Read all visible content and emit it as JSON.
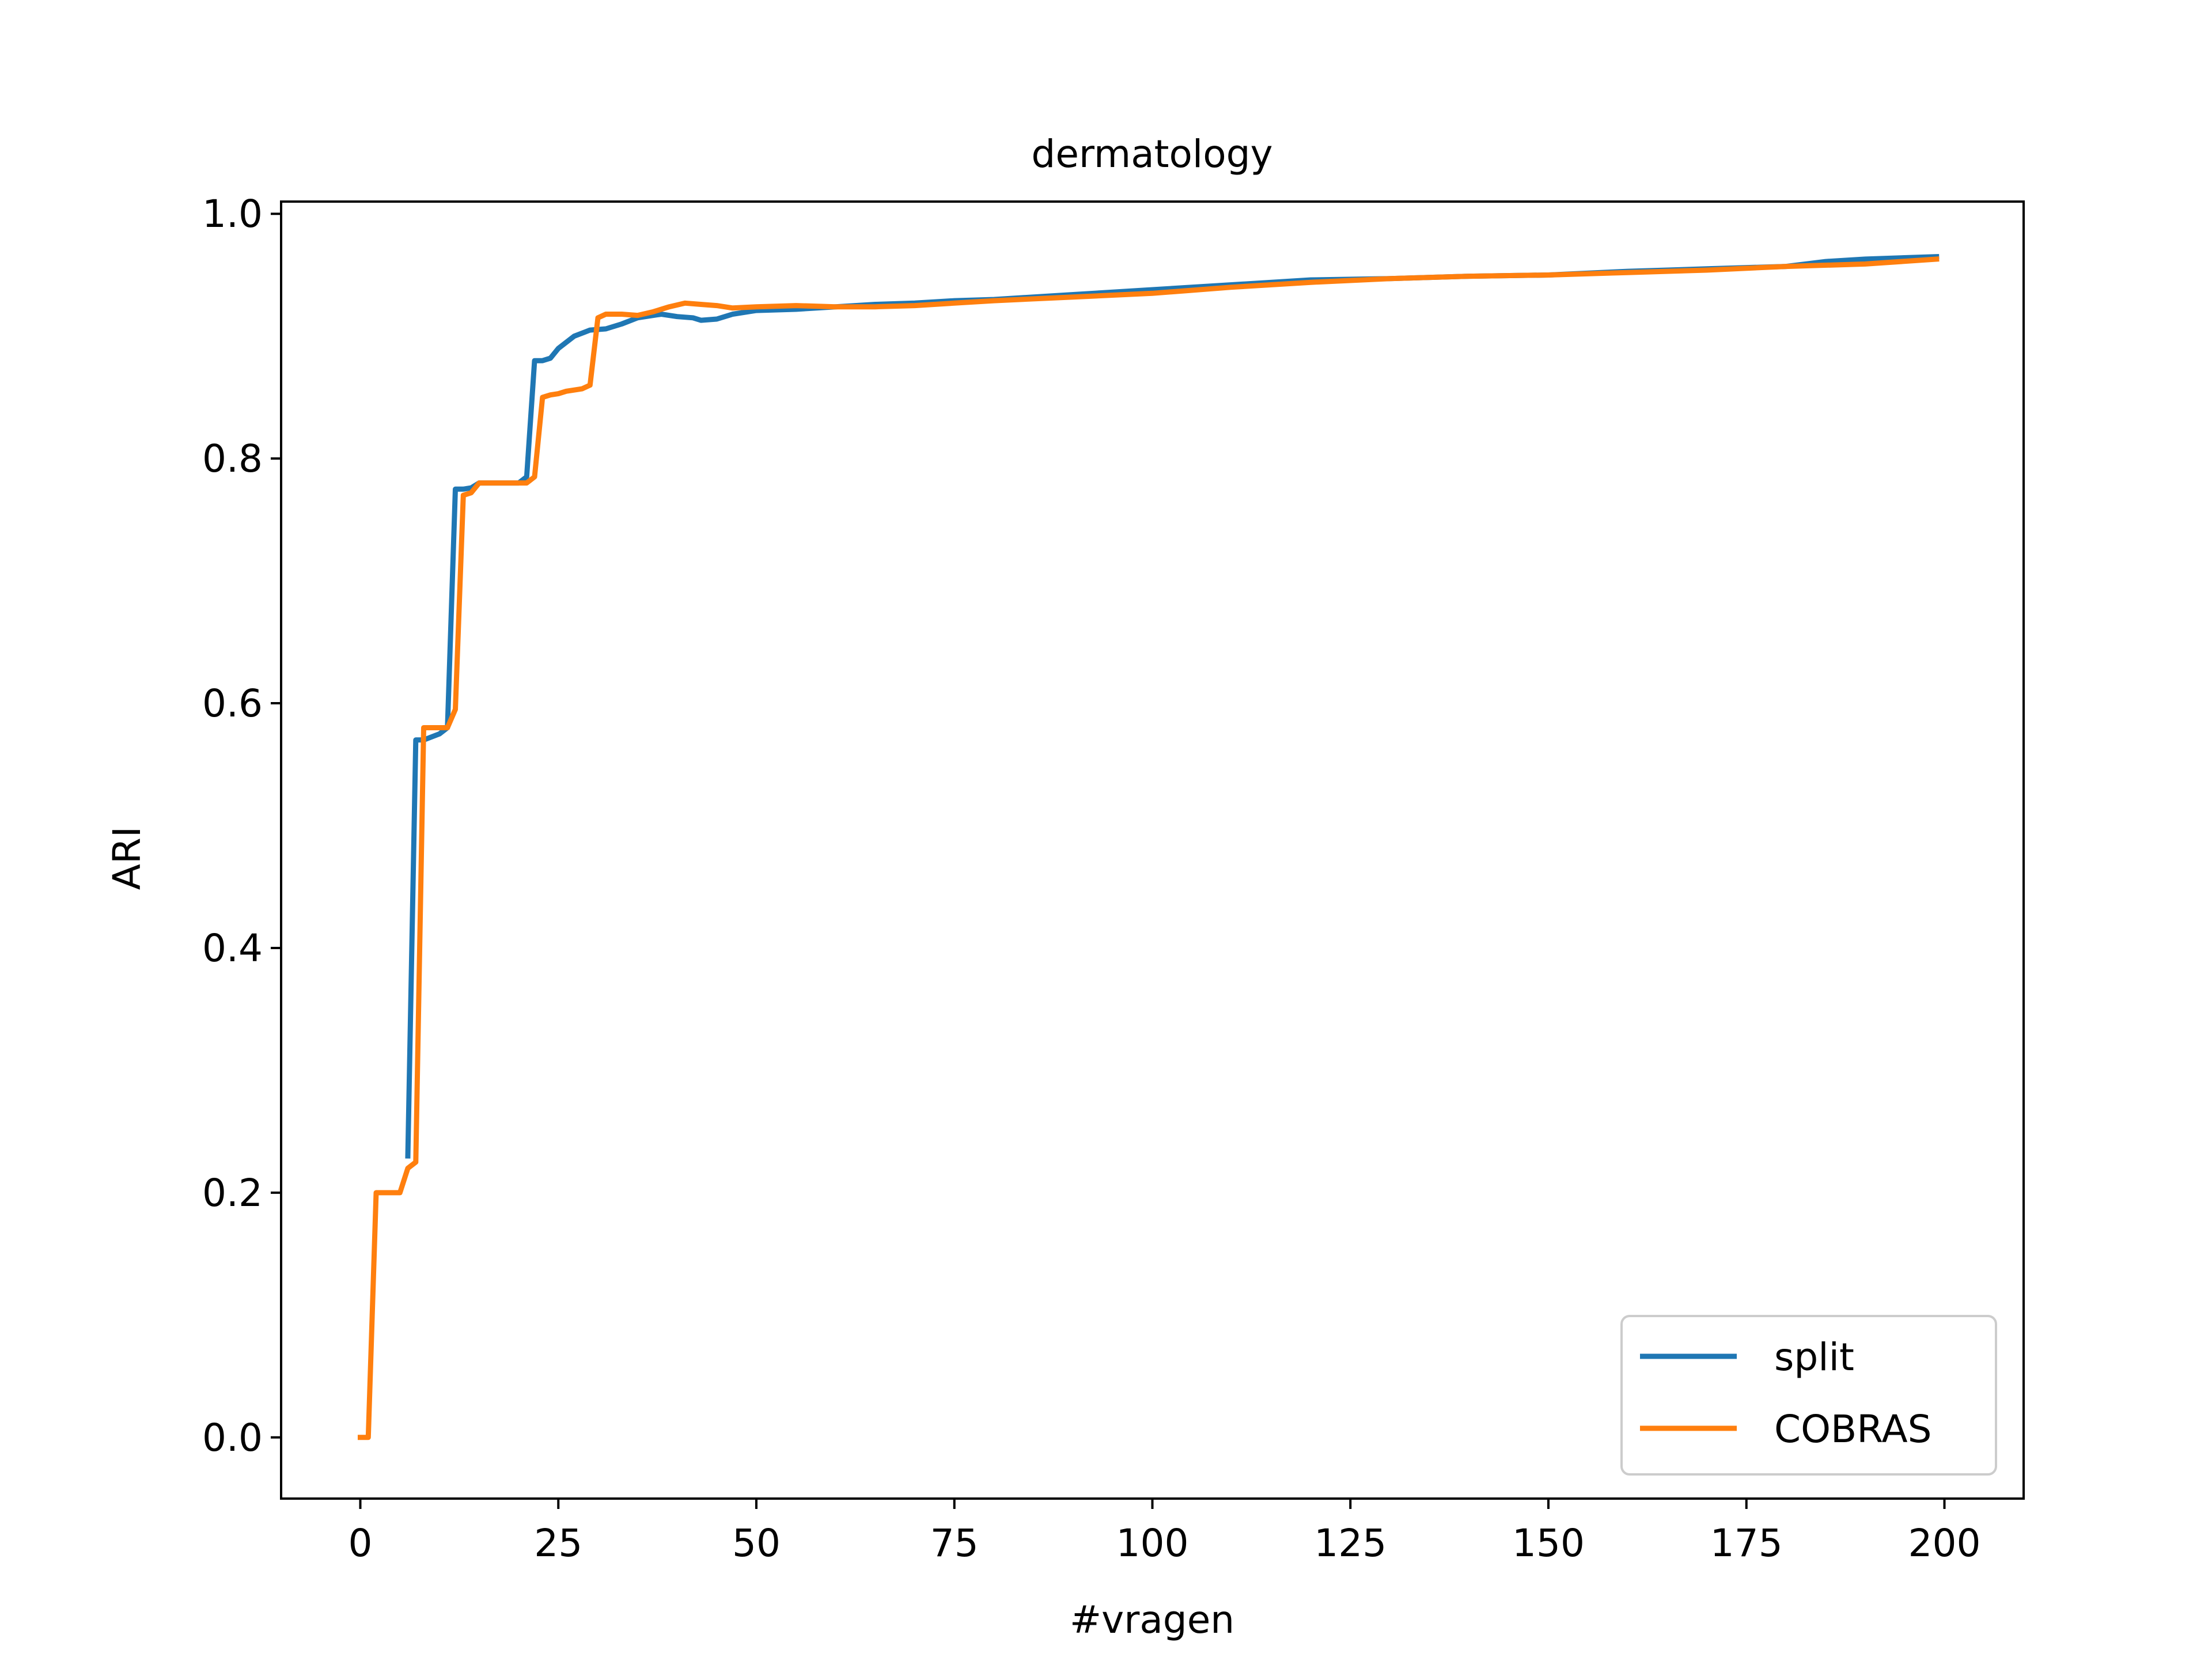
{
  "chart_data": {
    "type": "line",
    "title": "dermatology",
    "xlabel": "#vragen",
    "ylabel": "ARI",
    "xlim": [
      -10,
      210
    ],
    "ylim": [
      -0.05,
      1.01
    ],
    "xticks": [
      0,
      25,
      50,
      75,
      100,
      125,
      150,
      175,
      200
    ],
    "yticks": [
      0.0,
      0.2,
      0.4,
      0.6,
      0.8,
      1.0
    ],
    "xtick_labels": [
      "0",
      "25",
      "50",
      "75",
      "100",
      "125",
      "150",
      "175",
      "200"
    ],
    "ytick_labels": [
      "0.0",
      "0.2",
      "0.4",
      "0.6",
      "0.8",
      "1.0"
    ],
    "grid": false,
    "legend_position": "lower-right",
    "series": [
      {
        "name": "split",
        "color": "#1f77b4",
        "x": [
          6,
          7,
          8,
          10,
          11,
          12,
          13,
          14,
          15,
          16,
          18,
          20,
          21,
          22,
          23,
          24,
          25,
          27,
          29,
          31,
          33,
          35,
          38,
          40,
          42,
          43,
          45,
          47,
          50,
          55,
          60,
          65,
          70,
          75,
          80,
          90,
          100,
          110,
          120,
          130,
          140,
          150,
          160,
          170,
          180,
          185,
          190,
          199
        ],
        "y": [
          0.23,
          0.57,
          0.57,
          0.575,
          0.58,
          0.775,
          0.775,
          0.776,
          0.78,
          0.78,
          0.78,
          0.78,
          0.785,
          0.88,
          0.88,
          0.882,
          0.89,
          0.9,
          0.905,
          0.906,
          0.91,
          0.915,
          0.918,
          0.916,
          0.915,
          0.913,
          0.914,
          0.918,
          0.921,
          0.922,
          0.924,
          0.926,
          0.927,
          0.929,
          0.93,
          0.934,
          0.938,
          0.942,
          0.946,
          0.947,
          0.949,
          0.95,
          0.953,
          0.955,
          0.957,
          0.961,
          0.963,
          0.965
        ]
      },
      {
        "name": "COBRAS",
        "color": "#ff7f0e",
        "x": [
          0,
          1,
          2,
          3,
          4,
          5,
          6,
          7,
          8,
          9,
          10,
          11,
          12,
          13,
          14,
          15,
          16,
          18,
          20,
          21,
          22,
          23,
          24,
          25,
          26,
          27,
          28,
          29,
          30,
          31,
          33,
          35,
          37,
          39,
          41,
          43,
          45,
          47,
          50,
          55,
          60,
          65,
          70,
          75,
          80,
          90,
          100,
          110,
          120,
          130,
          140,
          150,
          160,
          170,
          180,
          190,
          199
        ],
        "y": [
          0.0,
          0.0,
          0.2,
          0.2,
          0.2,
          0.2,
          0.22,
          0.225,
          0.58,
          0.58,
          0.58,
          0.58,
          0.595,
          0.77,
          0.772,
          0.78,
          0.78,
          0.78,
          0.78,
          0.78,
          0.785,
          0.85,
          0.852,
          0.853,
          0.855,
          0.856,
          0.857,
          0.86,
          0.915,
          0.918,
          0.918,
          0.917,
          0.92,
          0.924,
          0.927,
          0.926,
          0.925,
          0.923,
          0.924,
          0.925,
          0.924,
          0.924,
          0.925,
          0.927,
          0.929,
          0.932,
          0.935,
          0.94,
          0.944,
          0.947,
          0.949,
          0.95,
          0.952,
          0.954,
          0.957,
          0.959,
          0.963
        ]
      }
    ]
  }
}
